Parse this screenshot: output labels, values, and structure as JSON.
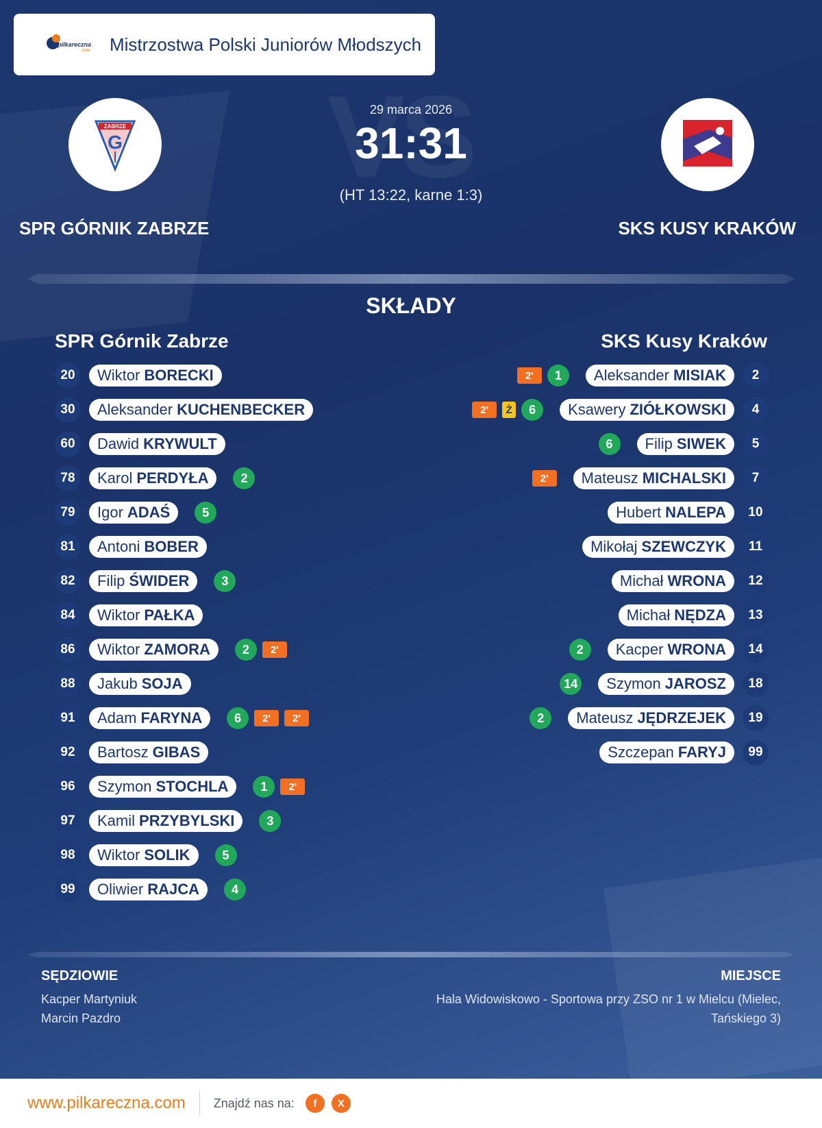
{
  "header": {
    "logo_text": "pilkareczna",
    "logo_sub": ".com",
    "competition": "Mistrzostwa Polski Juniorów Młodszych"
  },
  "match": {
    "date": "29 marca 2026",
    "score": "31:31",
    "halftime": "(HT 13:22, karne 1:3)",
    "vs_watermark": "VS",
    "home_team": "SPR GÓRNIK ZABRZE",
    "away_team": "SKS KUSY KRAKÓW",
    "home_crest_text": "ZABRZE",
    "colors": {
      "accent": "#f07c17",
      "navy": "#1c3770",
      "goal": "#22a85a",
      "penalty": "#f36f21",
      "yellow_card": "#f7c31c"
    }
  },
  "lineups": {
    "title": "SKŁADY",
    "home": {
      "name": "SPR Górnik Zabrze",
      "players": [
        {
          "number": "20",
          "first": "Wiktor",
          "last": "BORECKI",
          "events": []
        },
        {
          "number": "30",
          "first": "Aleksander",
          "last": "KUCHENBECKER",
          "events": []
        },
        {
          "number": "60",
          "first": "Dawid",
          "last": "KRYWULT",
          "events": []
        },
        {
          "number": "78",
          "first": "Karol",
          "last": "PERDYŁA",
          "events": [
            {
              "type": "goal",
              "value": "2"
            }
          ]
        },
        {
          "number": "79",
          "first": "Igor",
          "last": "ADAŚ",
          "events": [
            {
              "type": "goal",
              "value": "5"
            }
          ]
        },
        {
          "number": "81",
          "first": "Antoni",
          "last": "BOBER",
          "events": []
        },
        {
          "number": "82",
          "first": "Filip",
          "last": "ŚWIDER",
          "events": [
            {
              "type": "goal",
              "value": "3"
            }
          ]
        },
        {
          "number": "84",
          "first": "Wiktor",
          "last": "PAŁKA",
          "events": []
        },
        {
          "number": "86",
          "first": "Wiktor",
          "last": "ZAMORA",
          "events": [
            {
              "type": "goal",
              "value": "2"
            },
            {
              "type": "suspension",
              "value": "2'"
            }
          ]
        },
        {
          "number": "88",
          "first": "Jakub",
          "last": "SOJA",
          "events": []
        },
        {
          "number": "91",
          "first": "Adam",
          "last": "FARYNA",
          "events": [
            {
              "type": "goal",
              "value": "6"
            },
            {
              "type": "suspension",
              "value": "2'"
            },
            {
              "type": "suspension",
              "value": "2'"
            }
          ]
        },
        {
          "number": "92",
          "first": "Bartosz",
          "last": "GIBAS",
          "events": []
        },
        {
          "number": "96",
          "first": "Szymon",
          "last": "STOCHLA",
          "events": [
            {
              "type": "goal",
              "value": "1"
            },
            {
              "type": "suspension",
              "value": "2'"
            }
          ]
        },
        {
          "number": "97",
          "first": "Kamil",
          "last": "PRZYBYLSKI",
          "events": [
            {
              "type": "goal",
              "value": "3"
            }
          ]
        },
        {
          "number": "98",
          "first": "Wiktor",
          "last": "SOLIK",
          "events": [
            {
              "type": "goal",
              "value": "5"
            }
          ]
        },
        {
          "number": "99",
          "first": "Oliwier",
          "last": "RAJCA",
          "events": [
            {
              "type": "goal",
              "value": "4"
            }
          ]
        }
      ]
    },
    "away": {
      "name": "SKS Kusy Kraków",
      "players": [
        {
          "number": "2",
          "first": "Aleksander",
          "last": "MISIAK",
          "events": [
            {
              "type": "goal",
              "value": "1"
            },
            {
              "type": "suspension",
              "value": "2'"
            }
          ]
        },
        {
          "number": "4",
          "first": "Ksawery",
          "last": "ZIÓŁKOWSKI",
          "events": [
            {
              "type": "goal",
              "value": "6"
            },
            {
              "type": "yellow",
              "value": "Ż"
            },
            {
              "type": "suspension",
              "value": "2'"
            }
          ]
        },
        {
          "number": "5",
          "first": "Filip",
          "last": "SIWEK",
          "events": [
            {
              "type": "goal",
              "value": "6"
            }
          ]
        },
        {
          "number": "7",
          "first": "Mateusz",
          "last": "MICHALSKI",
          "events": [
            {
              "type": "suspension",
              "value": "2'"
            }
          ]
        },
        {
          "number": "10",
          "first": "Hubert",
          "last": "NALEPA",
          "events": []
        },
        {
          "number": "11",
          "first": "Mikołaj",
          "last": "SZEWCZYK",
          "events": []
        },
        {
          "number": "12",
          "first": "Michał",
          "last": "WRONA",
          "events": []
        },
        {
          "number": "13",
          "first": "Michał",
          "last": "NĘDZA",
          "events": []
        },
        {
          "number": "14",
          "first": "Kacper",
          "last": "WRONA",
          "events": [
            {
              "type": "goal",
              "value": "2"
            }
          ]
        },
        {
          "number": "18",
          "first": "Szymon",
          "last": "JAROSZ",
          "events": [
            {
              "type": "goal",
              "value": "14"
            }
          ]
        },
        {
          "number": "19",
          "first": "Mateusz",
          "last": "JĘDRZEJEK",
          "events": [
            {
              "type": "goal",
              "value": "2"
            }
          ]
        },
        {
          "number": "99",
          "first": "Szczepan",
          "last": "FARYJ",
          "events": []
        }
      ]
    }
  },
  "officials": {
    "title": "SĘDZIOWIE",
    "names": [
      "Kacper Martyniuk",
      "Marcin Pazdro"
    ]
  },
  "venue": {
    "title": "MIEJSCE",
    "line1": "Hala Widowiskowo - Sportowa przy ZSO nr 1 w Mielcu (Mielec,",
    "line2": "Tańskiego 3)"
  },
  "footer": {
    "website": "www.pilkareczna.com",
    "find_us": "Znajdź nas na:",
    "social": [
      {
        "icon": "facebook-icon",
        "glyph": "f"
      },
      {
        "icon": "x-icon",
        "glyph": "X"
      }
    ]
  }
}
